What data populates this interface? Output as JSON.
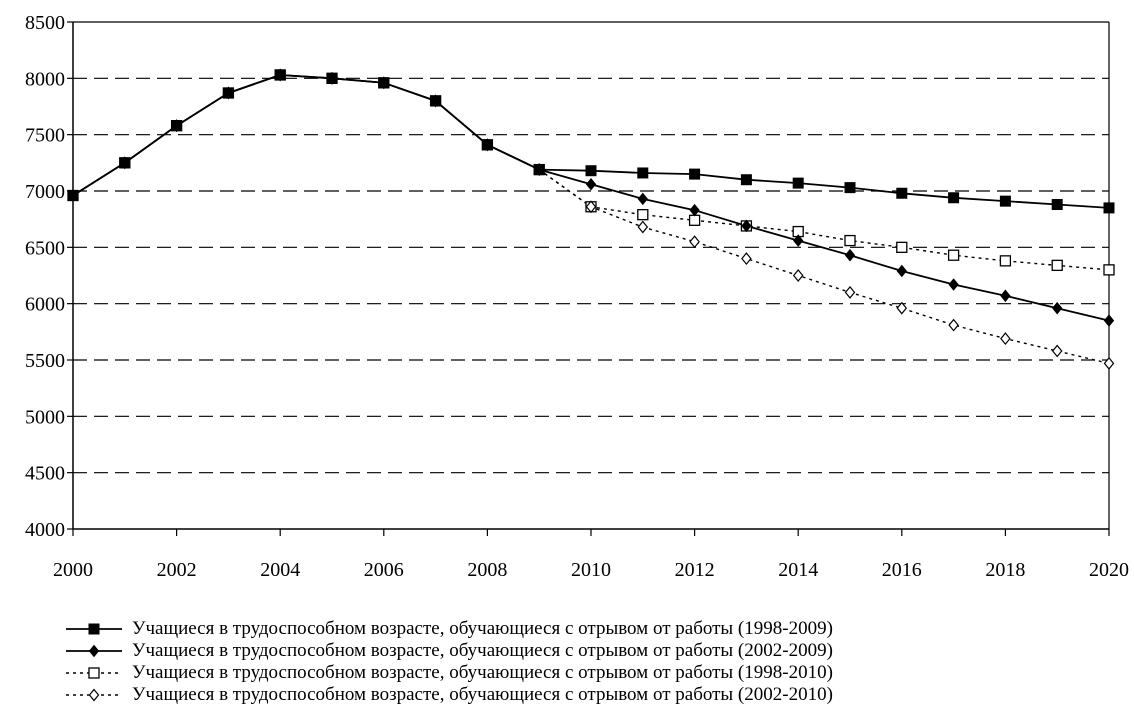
{
  "chart_data": {
    "type": "line",
    "title": "",
    "xlabel": "",
    "ylabel": "",
    "xlim": [
      2000,
      2020
    ],
    "ylim": [
      4000,
      8500
    ],
    "x_ticks": [
      2000,
      2002,
      2004,
      2006,
      2008,
      2010,
      2012,
      2014,
      2016,
      2018,
      2020
    ],
    "y_ticks": [
      4000,
      4500,
      5000,
      5500,
      6000,
      6500,
      7000,
      7500,
      8000,
      8500
    ],
    "grid": "horizontal dashed",
    "legend_position": "bottom",
    "x": [
      2000,
      2001,
      2002,
      2003,
      2004,
      2005,
      2006,
      2007,
      2008,
      2009,
      2010,
      2011,
      2012,
      2013,
      2014,
      2015,
      2016,
      2017,
      2018,
      2019,
      2020
    ],
    "series": [
      {
        "name": "Учащиеся в трудоспособном возрасте, обучающиеся с отрывом от работы (1998-2009)",
        "line": "solid",
        "marker": "filled-square",
        "values": [
          6960,
          7250,
          7580,
          7870,
          8030,
          8000,
          7960,
          7800,
          7410,
          7190,
          7180,
          7160,
          7150,
          7100,
          7070,
          7030,
          6980,
          6940,
          6910,
          6880,
          6850
        ]
      },
      {
        "name": "Учащиеся в трудоспособном возрасте, обучающиеся с отрывом от работы (2002-2009)",
        "line": "solid",
        "marker": "filled-diamond",
        "values": [
          6960,
          7250,
          7580,
          7870,
          8030,
          8000,
          7960,
          7800,
          7410,
          7190,
          7060,
          6930,
          6830,
          6690,
          6560,
          6430,
          6290,
          6170,
          6070,
          5960,
          5850
        ]
      },
      {
        "name": "Учащиеся в трудоспособном возрасте, обучающиеся с отрывом от работы (1998-2010)",
        "line": "dotted",
        "marker": "open-square",
        "values": [
          6960,
          7250,
          7580,
          7870,
          8030,
          8000,
          7960,
          7800,
          7410,
          7190,
          6860,
          6790,
          6740,
          6690,
          6640,
          6560,
          6500,
          6430,
          6380,
          6340,
          6300
        ]
      },
      {
        "name": "Учащиеся в трудоспособном возрасте, обучающиеся с отрывом от работы (2002-2010)",
        "line": "dotted",
        "marker": "open-diamond",
        "values": [
          6960,
          7250,
          7580,
          7870,
          8030,
          8000,
          7960,
          7800,
          7410,
          7190,
          6860,
          6680,
          6550,
          6400,
          6250,
          6100,
          5960,
          5810,
          5690,
          5580,
          5470
        ]
      }
    ]
  }
}
